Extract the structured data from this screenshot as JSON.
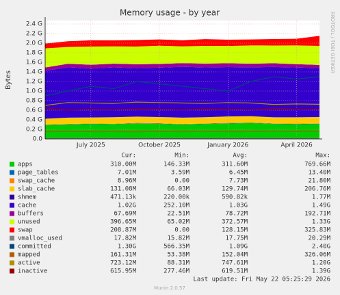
{
  "chart_data": {
    "type": "stacked-area",
    "title": "Memory usage - by year",
    "y_label": "Bytes",
    "side_label": "RRDTOOL / TOBI OETIKER",
    "x": [
      "2025-05",
      "2025-06",
      "2025-07",
      "2025-08",
      "2025-09",
      "2025-10",
      "2025-11",
      "2025-12",
      "2026-01",
      "2026-02",
      "2026-03",
      "2026-04",
      "2026-05"
    ],
    "xticks": [
      {
        "value": "2025-07",
        "label": "July 2025"
      },
      {
        "value": "2025-10",
        "label": "October 2025"
      },
      {
        "value": "2026-01",
        "label": "January 2026"
      },
      {
        "value": "2026-04",
        "label": "April 2026"
      }
    ],
    "ylim": [
      0,
      2400000000
    ],
    "yticks": [
      {
        "value": 0,
        "label": "0.0"
      },
      {
        "value": 200000000,
        "label": "0.2 G"
      },
      {
        "value": 400000000,
        "label": "0.4 G"
      },
      {
        "value": 600000000,
        "label": "0.6 G"
      },
      {
        "value": 800000000,
        "label": "0.8 G"
      },
      {
        "value": 1000000000,
        "label": "1.0 G"
      },
      {
        "value": 1200000000,
        "label": "1.2 G"
      },
      {
        "value": 1400000000,
        "label": "1.4 G"
      },
      {
        "value": 1600000000,
        "label": "1.6 G"
      },
      {
        "value": 1800000000,
        "label": "1.8 G"
      },
      {
        "value": 2000000000,
        "label": "2.0 G"
      },
      {
        "value": 2200000000,
        "label": "2.2 G"
      },
      {
        "value": 2400000000,
        "label": "2.4 G"
      }
    ],
    "grid": true,
    "legend_headers": [
      "Cur:",
      "Min:",
      "Avg:",
      "Max:"
    ],
    "series": [
      {
        "name": "apps",
        "color": "#00cc00",
        "stack": true,
        "cur": "310.00M",
        "min": "146.33M",
        "avg": "311.60M",
        "max": "769.66M",
        "values": [
          290000000,
          300000000,
          310000000,
          305000000,
          320000000,
          315000000,
          300000000,
          310000000,
          320000000,
          330000000,
          310000000,
          305000000,
          310000000
        ]
      },
      {
        "name": "page_tables",
        "color": "#0066b3",
        "stack": true,
        "cur": "7.01M",
        "min": "3.59M",
        "avg": "6.45M",
        "max": "13.40M",
        "values": [
          6000000,
          6000000,
          7000000,
          6000000,
          7000000,
          6000000,
          6000000,
          7000000,
          7000000,
          6000000,
          7000000,
          7000000,
          7000000
        ]
      },
      {
        "name": "swap_cache",
        "color": "#ff8000",
        "stack": true,
        "cur": "8.96M",
        "min": "0.00",
        "avg": "7.73M",
        "max": "21.80M",
        "values": [
          5000000,
          8000000,
          6000000,
          7000000,
          9000000,
          8000000,
          7000000,
          6000000,
          8000000,
          9000000,
          7000000,
          8000000,
          9000000
        ]
      },
      {
        "name": "slab_cache",
        "color": "#ffcc00",
        "stack": true,
        "cur": "131.08M",
        "min": "66.03M",
        "avg": "129.74M",
        "max": "206.76M",
        "values": [
          120000000,
          130000000,
          125000000,
          135000000,
          130000000,
          128000000,
          132000000,
          130000000,
          134000000,
          129000000,
          127000000,
          131000000,
          131000000
        ]
      },
      {
        "name": "shmem",
        "color": "#330099",
        "stack": true,
        "cur": "471.13k",
        "min": "220.00k",
        "avg": "590.82k",
        "max": "1.77M",
        "values": [
          600000,
          500000,
          600000,
          600000,
          500000,
          600000,
          500000,
          600000,
          600000,
          500000,
          600000,
          500000,
          500000
        ]
      },
      {
        "name": "cache",
        "color": "#3300cc",
        "stack": true,
        "cur": "1.02G",
        "min": "252.10M",
        "avg": "1.03G",
        "max": "1.49G",
        "values": [
          1000000000,
          1050000000,
          1020000000,
          1040000000,
          1010000000,
          1030000000,
          1060000000,
          1040000000,
          1030000000,
          1020000000,
          1050000000,
          1040000000,
          1020000000
        ]
      },
      {
        "name": "buffers",
        "color": "#990099",
        "stack": true,
        "cur": "67.69M",
        "min": "22.51M",
        "avg": "78.72M",
        "max": "192.71M",
        "values": [
          70000000,
          75000000,
          80000000,
          78000000,
          82000000,
          79000000,
          76000000,
          80000000,
          81000000,
          77000000,
          79000000,
          70000000,
          68000000
        ]
      },
      {
        "name": "unused",
        "color": "#ccff00",
        "stack": true,
        "cur": "396.65M",
        "min": "65.02M",
        "avg": "372.57M",
        "max": "1.33G",
        "values": [
          400000000,
          350000000,
          380000000,
          360000000,
          370000000,
          380000000,
          350000000,
          370000000,
          360000000,
          380000000,
          370000000,
          390000000,
          397000000
        ]
      },
      {
        "name": "swap",
        "color": "#ff0000",
        "stack": true,
        "cur": "208.87M",
        "min": "0.00",
        "avg": "128.15M",
        "max": "325.83M",
        "values": [
          100000000,
          120000000,
          130000000,
          125000000,
          135000000,
          130000000,
          128000000,
          140000000,
          130000000,
          125000000,
          135000000,
          140000000,
          209000000
        ]
      },
      {
        "name": "vmalloc_used",
        "color": "#808080",
        "stack": false,
        "cur": "17.82M",
        "min": "15.82M",
        "avg": "17.75M",
        "max": "20.29M",
        "values": [
          17000000,
          17500000,
          17800000,
          17600000,
          17900000,
          17700000,
          17800000,
          17600000,
          17900000,
          18000000,
          17700000,
          17800000,
          17800000
        ]
      },
      {
        "name": "committed",
        "color": "#00487d",
        "stack": false,
        "cur": "1.30G",
        "min": "566.35M",
        "avg": "1.09G",
        "max": "2.40G",
        "values": [
          900000000,
          1000000000,
          1100000000,
          1050000000,
          1200000000,
          1150000000,
          1100000000,
          1050000000,
          1000000000,
          1200000000,
          1300000000,
          1250000000,
          1300000000
        ]
      },
      {
        "name": "mapped",
        "color": "#b35a00",
        "stack": false,
        "cur": "161.31M",
        "min": "53.38M",
        "avg": "152.04M",
        "max": "326.06M",
        "values": [
          150000000,
          155000000,
          150000000,
          152000000,
          148000000,
          155000000,
          150000000,
          153000000,
          150000000,
          152000000,
          160000000,
          155000000,
          161000000
        ]
      },
      {
        "name": "active",
        "color": "#b38f00",
        "stack": false,
        "cur": "723.12M",
        "min": "88.31M",
        "avg": "747.61M",
        "max": "1.20G",
        "values": [
          700000000,
          760000000,
          750000000,
          740000000,
          770000000,
          760000000,
          750000000,
          740000000,
          760000000,
          750000000,
          720000000,
          730000000,
          723000000
        ]
      },
      {
        "name": "inactive",
        "color": "#990000",
        "stack": false,
        "cur": "615.95M",
        "min": "277.46M",
        "avg": "619.51M",
        "max": "1.39G",
        "values": [
          650000000,
          600000000,
          620000000,
          610000000,
          630000000,
          620000000,
          610000000,
          630000000,
          620000000,
          610000000,
          640000000,
          620000000,
          616000000
        ]
      }
    ],
    "footer": "Last update: Fri May 22 05:25:29 2026",
    "version": "Munin 2.0.57"
  }
}
